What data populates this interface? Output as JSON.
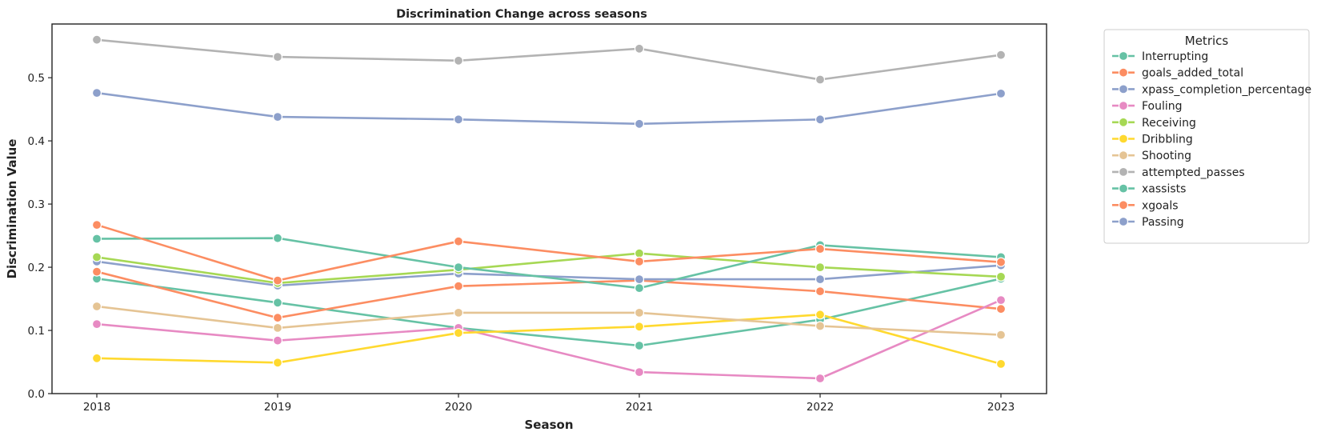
{
  "chart_data": {
    "type": "line",
    "title": "Discrimination Change across seasons",
    "xlabel": "Season",
    "ylabel": "Discrimination Value",
    "x": [
      "2018",
      "2019",
      "2020",
      "2021",
      "2022",
      "2023"
    ],
    "ylim": [
      0,
      0.585
    ],
    "yticks": [
      "0.0",
      "0.1",
      "0.2",
      "0.3",
      "0.4",
      "0.5"
    ],
    "grid": false,
    "legend_title": "Metrics",
    "legend_position": "outside-right",
    "series": [
      {
        "name": "Interrupting",
        "color": "#66c2a5",
        "values": [
          0.182,
          0.144,
          0.104,
          0.076,
          0.117,
          0.182
        ]
      },
      {
        "name": "goals_added_total",
        "color": "#fc8d62",
        "values": [
          0.193,
          0.12,
          0.17,
          0.179,
          0.162,
          0.134
        ]
      },
      {
        "name": "xpass_completion_percentage",
        "color": "#8da0cb",
        "values": [
          0.209,
          0.171,
          0.19,
          0.181,
          0.181,
          0.203
        ]
      },
      {
        "name": "Fouling",
        "color": "#e78ac3",
        "values": [
          0.11,
          0.084,
          0.104,
          0.034,
          0.024,
          0.148
        ]
      },
      {
        "name": "Receiving",
        "color": "#a6d854",
        "values": [
          0.216,
          0.175,
          0.196,
          0.222,
          0.2,
          0.185
        ]
      },
      {
        "name": "Dribbling",
        "color": "#ffd92f",
        "values": [
          0.056,
          0.049,
          0.096,
          0.106,
          0.125,
          0.047
        ]
      },
      {
        "name": "Shooting",
        "color": "#e5c494",
        "values": [
          0.138,
          0.104,
          0.128,
          0.128,
          0.107,
          0.093
        ]
      },
      {
        "name": "attempted_passes",
        "color": "#b3b3b3",
        "values": [
          0.56,
          0.533,
          0.527,
          0.546,
          0.497,
          0.536
        ]
      },
      {
        "name": "xassists",
        "color": "#66c2a5",
        "values": [
          0.245,
          0.246,
          0.2,
          0.167,
          0.235,
          0.216
        ]
      },
      {
        "name": "xgoals",
        "color": "#fc8d62",
        "values": [
          0.267,
          0.179,
          0.241,
          0.209,
          0.229,
          0.208
        ]
      },
      {
        "name": "Passing",
        "color": "#8da0cb",
        "values": [
          0.476,
          0.438,
          0.434,
          0.427,
          0.434,
          0.475
        ]
      }
    ]
  }
}
